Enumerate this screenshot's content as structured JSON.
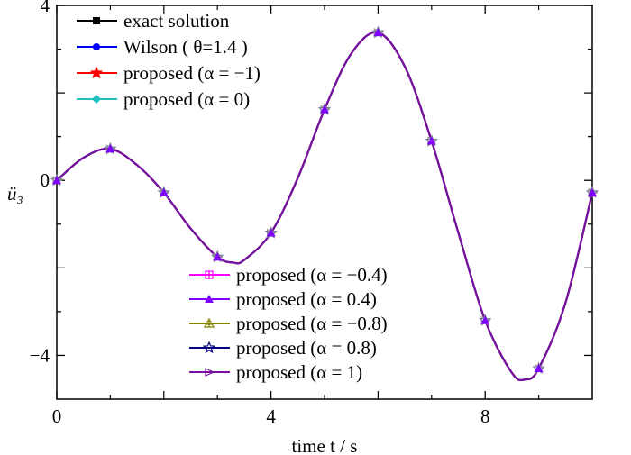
{
  "chart_data": {
    "type": "line",
    "xlabel": "time t / s",
    "ylabel": "ü₃",
    "xlim": [
      0,
      10
    ],
    "ylim": [
      -5,
      4
    ],
    "x_ticks": [
      0,
      4,
      8
    ],
    "y_ticks": [
      -4,
      0,
      4
    ],
    "x_tick_labels": [
      "0",
      "4",
      "8"
    ],
    "y_tick_labels": [
      "−4",
      "0",
      "4"
    ],
    "grid": false,
    "legend_placement": [
      "top-left",
      "bottom-center"
    ],
    "x": [
      0,
      0.5,
      1,
      1.5,
      2,
      2.5,
      3,
      3.3,
      3.5,
      4,
      4.5,
      5,
      5.5,
      6,
      6.5,
      7,
      7.5,
      8,
      8.5,
      8.75,
      9,
      9.5,
      10
    ],
    "series": [
      {
        "name": "exact solution",
        "color": "#000000",
        "marker": "square",
        "values": [
          0,
          0.52,
          0.72,
          0.35,
          -0.28,
          -1.1,
          -1.75,
          -1.88,
          -1.82,
          -1.2,
          0.05,
          1.62,
          2.9,
          3.38,
          2.6,
          0.9,
          -1.2,
          -3.2,
          -4.4,
          -4.55,
          -4.3,
          -2.8,
          -0.28
        ]
      },
      {
        "name": "Wilson ( θ=1.4 )",
        "color": "#0000ff",
        "marker": "circle",
        "values": [
          0,
          0.52,
          0.72,
          0.35,
          -0.28,
          -1.1,
          -1.75,
          -1.88,
          -1.82,
          -1.2,
          0.05,
          1.62,
          2.9,
          3.38,
          2.6,
          0.9,
          -1.2,
          -3.2,
          -4.4,
          -4.55,
          -4.3,
          -2.8,
          -0.28
        ]
      },
      {
        "name": "proposed (α = −1)",
        "color": "#ff0000",
        "marker": "star",
        "values": [
          0,
          0.52,
          0.72,
          0.35,
          -0.28,
          -1.1,
          -1.75,
          -1.88,
          -1.82,
          -1.2,
          0.05,
          1.62,
          2.9,
          3.38,
          2.6,
          0.9,
          -1.2,
          -3.2,
          -4.4,
          -4.55,
          -4.3,
          -2.8,
          -0.28
        ]
      },
      {
        "name": "proposed (α = 0)",
        "color": "#20c0c0",
        "marker": "diamond",
        "values": [
          0,
          0.52,
          0.72,
          0.35,
          -0.28,
          -1.1,
          -1.75,
          -1.88,
          -1.82,
          -1.2,
          0.05,
          1.62,
          2.9,
          3.38,
          2.6,
          0.9,
          -1.2,
          -3.2,
          -4.4,
          -4.55,
          -4.3,
          -2.8,
          -0.28
        ]
      },
      {
        "name": "proposed (α = −0.4)",
        "color": "#ff00ff",
        "marker": "square-plus",
        "values": [
          0,
          0.52,
          0.72,
          0.35,
          -0.28,
          -1.1,
          -1.75,
          -1.88,
          -1.82,
          -1.2,
          0.05,
          1.62,
          2.9,
          3.38,
          2.6,
          0.9,
          -1.2,
          -3.2,
          -4.4,
          -4.55,
          -4.3,
          -2.8,
          -0.28
        ]
      },
      {
        "name": "proposed (α = 0.4)",
        "color": "#8000ff",
        "marker": "triangle",
        "values": [
          0,
          0.52,
          0.72,
          0.35,
          -0.28,
          -1.1,
          -1.75,
          -1.88,
          -1.82,
          -1.2,
          0.05,
          1.62,
          2.9,
          3.38,
          2.6,
          0.9,
          -1.2,
          -3.2,
          -4.4,
          -4.55,
          -4.3,
          -2.8,
          -0.28
        ]
      },
      {
        "name": "proposed (α = −0.8)",
        "color": "#808000",
        "marker": "triangle-plus",
        "values": [
          0,
          0.52,
          0.72,
          0.35,
          -0.28,
          -1.1,
          -1.75,
          -1.88,
          -1.82,
          -1.2,
          0.05,
          1.62,
          2.9,
          3.38,
          2.6,
          0.9,
          -1.2,
          -3.2,
          -4.4,
          -4.55,
          -4.3,
          -2.8,
          -0.28
        ]
      },
      {
        "name": "proposed (α = 0.8)",
        "color": "#000080",
        "marker": "star-open",
        "values": [
          0,
          0.52,
          0.72,
          0.35,
          -0.28,
          -1.1,
          -1.75,
          -1.88,
          -1.82,
          -1.2,
          0.05,
          1.62,
          2.9,
          3.38,
          2.6,
          0.9,
          -1.2,
          -3.2,
          -4.4,
          -4.55,
          -4.3,
          -2.8,
          -0.28
        ]
      },
      {
        "name": "proposed (α = 1)",
        "color": "#7b0f9f",
        "marker": "triangle-right",
        "values": [
          0,
          0.52,
          0.72,
          0.35,
          -0.28,
          -1.1,
          -1.75,
          -1.88,
          -1.82,
          -1.2,
          0.05,
          1.62,
          2.9,
          3.38,
          2.6,
          0.9,
          -1.2,
          -3.2,
          -4.4,
          -4.55,
          -4.3,
          -2.8,
          -0.28
        ]
      }
    ],
    "marker_x": [
      0,
      1,
      2,
      3,
      4,
      5,
      6,
      7,
      8,
      9,
      10
    ],
    "marker_values": [
      0,
      0.72,
      -0.28,
      -1.75,
      -1.2,
      1.62,
      3.38,
      0.9,
      -3.2,
      -4.3,
      -0.28
    ]
  }
}
